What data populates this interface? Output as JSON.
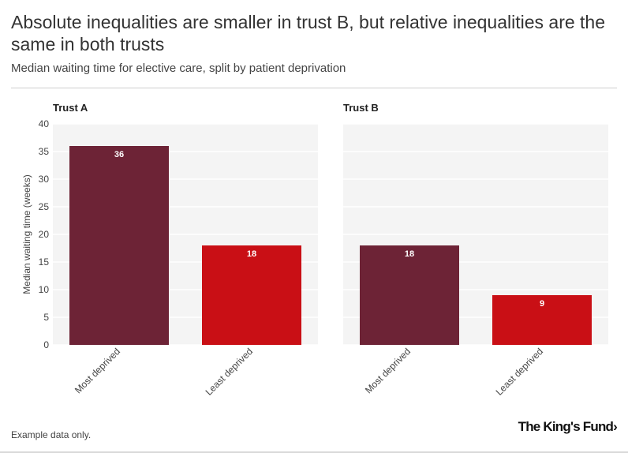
{
  "header": {
    "title": "Absolute inequalities are smaller in trust B, but relative inequalities are the same in both trusts",
    "subtitle": "Median waiting time for elective care, split by patient deprivation"
  },
  "footer": {
    "note": "Example data only.",
    "logo_text": "The King's Fund",
    "logo_chevron": "›"
  },
  "colors": {
    "most_deprived": "#6d2336",
    "least_deprived": "#c90f15",
    "panel_bg": "#f4f4f4",
    "grid": "#ffffff"
  },
  "chart_data": {
    "type": "bar",
    "ylabel": "Median waiting time (weeks)",
    "xlabel": "",
    "ylim": [
      0,
      40
    ],
    "yticks": [
      0,
      5,
      10,
      15,
      20,
      25,
      30,
      35,
      40
    ],
    "categories": [
      "Most deprived",
      "Least deprived"
    ],
    "panels": [
      {
        "title": "Trust A",
        "values": [
          36,
          18
        ]
      },
      {
        "title": "Trust B",
        "values": [
          18,
          9
        ]
      }
    ]
  }
}
